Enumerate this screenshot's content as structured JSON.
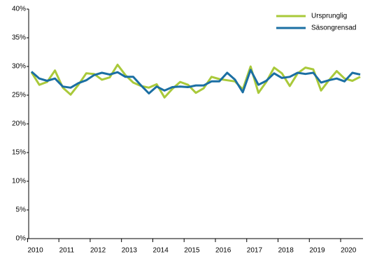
{
  "chart_data": {
    "type": "line",
    "categories": [
      "2010",
      null,
      null,
      null,
      "2011",
      null,
      null,
      null,
      "2012",
      null,
      null,
      null,
      "2013",
      null,
      null,
      null,
      "2014",
      null,
      null,
      null,
      "2015",
      null,
      null,
      null,
      "2016",
      null,
      null,
      null,
      "2017",
      null,
      null,
      null,
      "2018",
      null,
      null,
      null,
      "2019",
      null,
      null,
      null,
      "2020",
      null,
      null
    ],
    "series": [
      {
        "name": "Ursprunglig",
        "color": "#a9c93a",
        "values": [
          29.0,
          26.8,
          27.3,
          29.3,
          26.3,
          25.1,
          26.8,
          28.8,
          28.7,
          27.7,
          28.1,
          30.3,
          28.5,
          27.2,
          26.6,
          26.3,
          26.9,
          24.6,
          26.1,
          27.3,
          26.8,
          25.4,
          26.2,
          28.2,
          27.8,
          27.6,
          27.4,
          26.0,
          30.0,
          25.4,
          27.3,
          29.8,
          28.8,
          26.6,
          28.8,
          29.8,
          29.5,
          25.8,
          27.6,
          29.2,
          27.9,
          27.5,
          28.2
        ]
      },
      {
        "name": "Säsongrensad",
        "color": "#1b6fa3",
        "values": [
          29.1,
          27.9,
          27.5,
          27.9,
          26.5,
          26.3,
          27.1,
          27.6,
          28.5,
          28.9,
          28.6,
          29.0,
          28.2,
          28.2,
          26.7,
          25.3,
          26.5,
          25.8,
          26.4,
          26.5,
          26.4,
          26.7,
          26.7,
          27.4,
          27.4,
          28.9,
          27.7,
          25.5,
          29.4,
          26.8,
          27.5,
          28.8,
          28.0,
          28.2,
          28.9,
          28.7,
          28.9,
          27.2,
          27.6,
          27.9,
          27.4,
          28.9,
          28.6
        ]
      }
    ],
    "ylim": [
      0,
      40
    ],
    "yticks": [
      {
        "value": 0,
        "label": "0%"
      },
      {
        "value": 5,
        "label": "5%"
      },
      {
        "value": 10,
        "label": "10%"
      },
      {
        "value": 15,
        "label": "15%"
      },
      {
        "value": 20,
        "label": "20%"
      },
      {
        "value": 25,
        "label": "25%"
      },
      {
        "value": 30,
        "label": "30%"
      },
      {
        "value": 35,
        "label": "35%"
      },
      {
        "value": 40,
        "label": "40%"
      }
    ],
    "legend": "top-right"
  }
}
